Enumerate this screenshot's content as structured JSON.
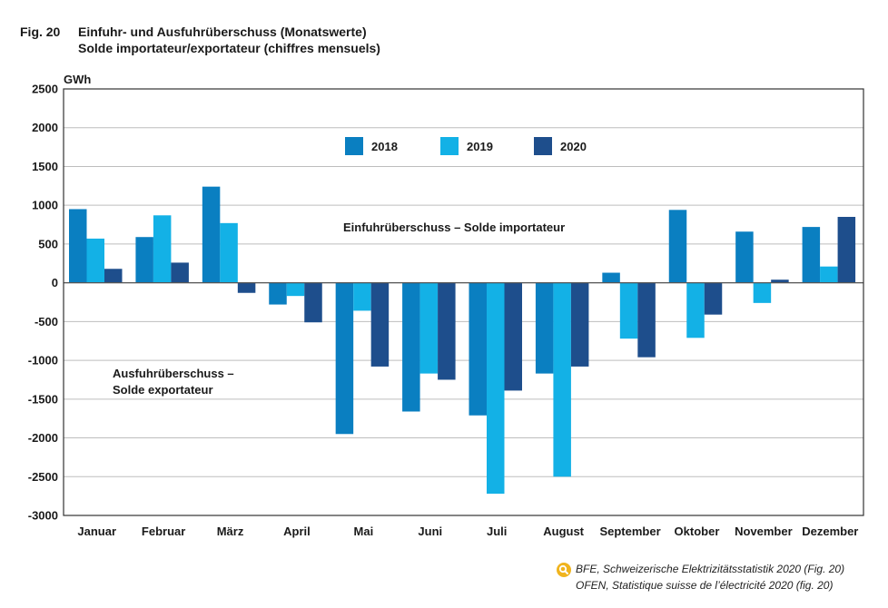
{
  "figure": {
    "number": "Fig. 20",
    "title_de": "Einfuhr- und Ausfuhrüberschuss (Monatswerte)",
    "title_fr": "Solde importateur/exportateur (chiffres mensuels)"
  },
  "source": {
    "line1": "BFE, Schweizerische Elektrizitätsstatistik 2020 (Fig. 20)",
    "line2": "OFEN, Statistique suisse de l’électricité 2020 (fig. 20)",
    "icon": "magnifier-icon",
    "icon_color": "#f0b41e"
  },
  "chart_data": {
    "type": "bar",
    "ylabel": "GWh",
    "ylim": [
      -3000,
      2500
    ],
    "yticks": [
      2500,
      2000,
      1500,
      1000,
      500,
      0,
      -500,
      -1000,
      -1500,
      -2000,
      -2500,
      -3000
    ],
    "grid": true,
    "legend_position": "top-center",
    "categories": [
      "Januar",
      "Februar",
      "März",
      "April",
      "Mai",
      "Juni",
      "Juli",
      "August",
      "September",
      "Oktober",
      "November",
      "Dezember"
    ],
    "series": [
      {
        "name": "2018",
        "color": "#0a7fc1",
        "values": [
          950,
          590,
          1240,
          -280,
          -1950,
          -1660,
          -1710,
          -1170,
          130,
          940,
          660,
          720
        ]
      },
      {
        "name": "2019",
        "color": "#13b1e6",
        "values": [
          570,
          870,
          770,
          -170,
          -360,
          -1170,
          -2720,
          -2500,
          -720,
          -710,
          -260,
          210
        ]
      },
      {
        "name": "2020",
        "color": "#1e4e8c",
        "values": [
          180,
          260,
          -130,
          -510,
          -1080,
          -1250,
          -1390,
          -1080,
          -960,
          -410,
          40,
          850
        ]
      }
    ],
    "annotations": {
      "import": "Einfuhrüberschuss – Solde importateur",
      "export_line1": "Ausfuhrüberschuss –",
      "export_line2": "Solde exportateur"
    }
  }
}
